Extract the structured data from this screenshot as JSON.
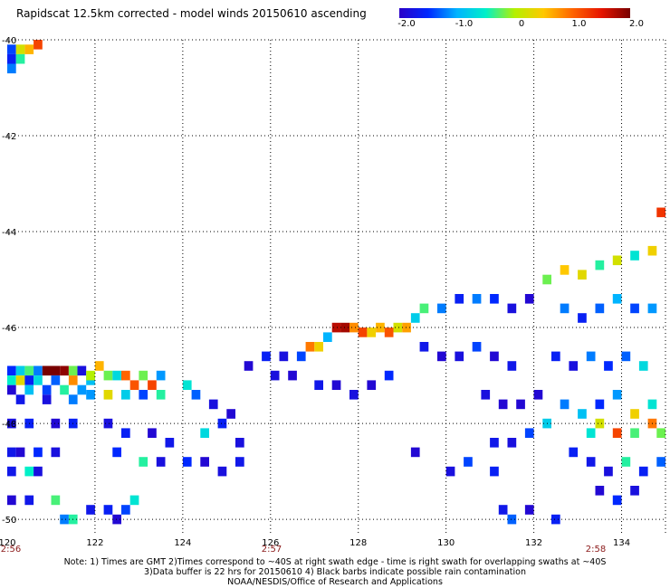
{
  "title": "Rapidscat 12.5km corrected - model winds 20150610 ascending",
  "colorbar": {
    "ticks": [
      "-2.0",
      "-1.0",
      "0",
      "1.0",
      "2.0"
    ],
    "range": [
      -2.0,
      2.0
    ],
    "colors": [
      "#2a00c8",
      "#0028ff",
      "#00b4ff",
      "#00f0c8",
      "#b4f000",
      "#ffc800",
      "#ff6400",
      "#e61400",
      "#780000"
    ]
  },
  "time_labels": [
    "2:56",
    "2:57",
    "2:58"
  ],
  "notes": [
    "Note: 1) Times are GMT 2)Times correspond to ~40S at right swath edge - time is right swath for overlapping swaths at ~40S",
    "3)Data buffer is 22 hrs for 20150610 4) Black barbs indicate possible rain contamination",
    "NOAA/NESDIS/Office of Research and Applications"
  ],
  "chart_data": {
    "type": "heatmap",
    "title": "Rapidscat 12.5km corrected - model winds 20150610 ascending",
    "xlabel": "",
    "ylabel": "",
    "xlim": [
      120,
      135
    ],
    "ylim": [
      -50.3,
      -40
    ],
    "x_ticks": [
      "120",
      "122",
      "124",
      "126",
      "128",
      "130",
      "132",
      "134"
    ],
    "y_ticks": [
      "-40",
      "-42",
      "-44",
      "-46",
      "-48",
      "-50"
    ],
    "grid": true,
    "value_range": [
      -2.0,
      2.0
    ],
    "cell_size_deg": 0.2,
    "cells": [
      [
        120.1,
        -40.2,
        -1.4
      ],
      [
        120.3,
        -40.2,
        0.2
      ],
      [
        120.5,
        -40.2,
        0.6
      ],
      [
        120.7,
        -40.1,
        1.2
      ],
      [
        120.1,
        -40.4,
        -1.6
      ],
      [
        120.3,
        -40.4,
        -0.4
      ],
      [
        120.1,
        -40.6,
        -1.2
      ],
      [
        120.1,
        -46.9,
        -1.5
      ],
      [
        120.3,
        -46.9,
        -0.8
      ],
      [
        120.5,
        -46.9,
        -0.3
      ],
      [
        120.7,
        -46.9,
        -1.2
      ],
      [
        120.9,
        -46.9,
        2.0
      ],
      [
        121.1,
        -46.9,
        2.0
      ],
      [
        121.3,
        -46.9,
        1.9
      ],
      [
        121.5,
        -46.9,
        -0.2
      ],
      [
        121.7,
        -46.9,
        -1.8
      ],
      [
        120.1,
        -47.1,
        -0.5
      ],
      [
        120.3,
        -47.1,
        0.3
      ],
      [
        120.5,
        -47.1,
        -1.6
      ],
      [
        120.7,
        -47.1,
        -0.7
      ],
      [
        121.1,
        -47.1,
        -1.3
      ],
      [
        121.5,
        -47.1,
        0.8
      ],
      [
        121.9,
        -47.1,
        -0.9
      ],
      [
        120.1,
        -47.3,
        -1.9
      ],
      [
        120.5,
        -47.3,
        -0.9
      ],
      [
        120.9,
        -47.3,
        -1.4
      ],
      [
        121.3,
        -47.3,
        -0.4
      ],
      [
        121.7,
        -47.3,
        -1.1
      ],
      [
        120.3,
        -47.5,
        -1.7
      ],
      [
        120.9,
        -47.5,
        -1.8
      ],
      [
        121.5,
        -47.5,
        -1.2
      ],
      [
        120.1,
        -48.0,
        -1.8
      ],
      [
        120.5,
        -48.0,
        -1.6
      ],
      [
        121.1,
        -48.0,
        -1.9
      ],
      [
        121.5,
        -48.0,
        -1.6
      ],
      [
        120.1,
        -48.6,
        -1.7
      ],
      [
        120.3,
        -48.6,
        -1.9
      ],
      [
        120.7,
        -48.6,
        -1.5
      ],
      [
        121.1,
        -48.6,
        -1.8
      ],
      [
        120.1,
        -49.0,
        -1.7
      ],
      [
        120.5,
        -49.0,
        -0.5
      ],
      [
        120.7,
        -49.0,
        -1.8
      ],
      [
        120.1,
        -49.6,
        -1.9
      ],
      [
        120.5,
        -49.6,
        -1.7
      ],
      [
        121.1,
        -49.6,
        -0.3
      ],
      [
        121.3,
        -50.0,
        -1.2
      ],
      [
        121.5,
        -50.0,
        -0.4
      ],
      [
        121.9,
        -49.8,
        -1.7
      ],
      [
        122.3,
        -49.8,
        -1.6
      ],
      [
        122.5,
        -50.0,
        -1.9
      ],
      [
        122.7,
        -49.8,
        -1.4
      ],
      [
        122.9,
        -49.6,
        -0.6
      ],
      [
        121.9,
        -47.0,
        0.0
      ],
      [
        122.1,
        -46.8,
        0.6
      ],
      [
        122.3,
        -47.0,
        -0.2
      ],
      [
        122.5,
        -47.0,
        -0.7
      ],
      [
        122.7,
        -47.0,
        1.0
      ],
      [
        122.9,
        -47.2,
        1.1
      ],
      [
        123.1,
        -47.0,
        -0.2
      ],
      [
        123.3,
        -47.2,
        1.2
      ],
      [
        123.5,
        -47.0,
        -1.1
      ],
      [
        121.9,
        -47.4,
        -1.1
      ],
      [
        122.3,
        -47.4,
        0.3
      ],
      [
        122.7,
        -47.4,
        -0.8
      ],
      [
        123.1,
        -47.4,
        -1.4
      ],
      [
        123.5,
        -47.4,
        -0.4
      ],
      [
        122.3,
        -48.0,
        -1.8
      ],
      [
        122.7,
        -48.2,
        -1.6
      ],
      [
        123.3,
        -48.2,
        -1.9
      ],
      [
        123.7,
        -48.4,
        -1.7
      ],
      [
        122.5,
        -48.6,
        -1.5
      ],
      [
        123.1,
        -48.8,
        -0.4
      ],
      [
        123.5,
        -48.8,
        -1.8
      ],
      [
        124.1,
        -47.2,
        -0.6
      ],
      [
        124.3,
        -47.4,
        -1.3
      ],
      [
        124.7,
        -47.6,
        -1.8
      ],
      [
        125.1,
        -47.8,
        -1.9
      ],
      [
        124.5,
        -48.2,
        -0.7
      ],
      [
        124.9,
        -48.0,
        -1.6
      ],
      [
        125.3,
        -48.4,
        -1.8
      ],
      [
        124.1,
        -48.8,
        -1.5
      ],
      [
        124.5,
        -48.8,
        -1.9
      ],
      [
        124.9,
        -49.0,
        -1.8
      ],
      [
        125.3,
        -48.8,
        -1.7
      ],
      [
        125.5,
        -46.8,
        -1.9
      ],
      [
        125.9,
        -46.6,
        -1.6
      ],
      [
        126.3,
        -46.6,
        -1.8
      ],
      [
        126.7,
        -46.6,
        -1.4
      ],
      [
        126.9,
        -46.4,
        0.9
      ],
      [
        127.1,
        -46.4,
        0.4
      ],
      [
        127.3,
        -46.2,
        -1.0
      ],
      [
        127.5,
        -46.0,
        1.7
      ],
      [
        127.7,
        -46.0,
        1.8
      ],
      [
        127.9,
        -46.0,
        0.8
      ],
      [
        128.1,
        -46.1,
        1.2
      ],
      [
        128.3,
        -46.1,
        0.4
      ],
      [
        128.5,
        -46.0,
        0.6
      ],
      [
        128.7,
        -46.1,
        1.1
      ],
      [
        128.9,
        -46.0,
        0.2
      ],
      [
        129.1,
        -46.0,
        0.7
      ],
      [
        126.1,
        -47.0,
        -1.8
      ],
      [
        126.5,
        -47.0,
        -1.9
      ],
      [
        127.1,
        -47.2,
        -1.7
      ],
      [
        127.5,
        -47.2,
        -1.9
      ],
      [
        127.9,
        -47.4,
        -1.8
      ],
      [
        128.3,
        -47.2,
        -1.9
      ],
      [
        128.7,
        -47.0,
        -1.5
      ],
      [
        129.3,
        -45.8,
        -0.8
      ],
      [
        129.5,
        -45.6,
        -0.3
      ],
      [
        129.9,
        -45.6,
        -1.2
      ],
      [
        130.3,
        -45.4,
        -1.6
      ],
      [
        130.7,
        -45.4,
        -1.2
      ],
      [
        131.1,
        -45.4,
        -1.5
      ],
      [
        131.5,
        -45.6,
        -1.8
      ],
      [
        131.9,
        -45.4,
        -1.9
      ],
      [
        129.5,
        -46.4,
        -1.7
      ],
      [
        129.9,
        -46.6,
        -1.9
      ],
      [
        130.3,
        -46.6,
        -1.8
      ],
      [
        130.7,
        -46.4,
        -1.4
      ],
      [
        131.1,
        -46.6,
        -1.9
      ],
      [
        131.5,
        -46.8,
        -1.7
      ],
      [
        130.9,
        -47.4,
        -1.8
      ],
      [
        131.3,
        -47.6,
        -1.9
      ],
      [
        131.7,
        -47.6,
        -1.9
      ],
      [
        132.1,
        -47.4,
        -1.9
      ],
      [
        131.1,
        -48.4,
        -1.7
      ],
      [
        131.5,
        -48.4,
        -1.8
      ],
      [
        131.9,
        -48.2,
        -1.4
      ],
      [
        132.3,
        -48.0,
        -0.8
      ],
      [
        132.3,
        -45.0,
        -0.2
      ],
      [
        132.7,
        -44.8,
        0.5
      ],
      [
        133.1,
        -44.9,
        0.3
      ],
      [
        133.5,
        -44.7,
        -0.4
      ],
      [
        133.9,
        -44.6,
        0.2
      ],
      [
        134.3,
        -44.5,
        -0.6
      ],
      [
        134.7,
        -44.4,
        0.4
      ],
      [
        134.9,
        -43.6,
        1.3
      ],
      [
        132.7,
        -45.6,
        -1.2
      ],
      [
        133.1,
        -45.8,
        -1.6
      ],
      [
        133.5,
        -45.6,
        -1.3
      ],
      [
        133.9,
        -45.4,
        -1.0
      ],
      [
        134.3,
        -45.6,
        -1.4
      ],
      [
        134.7,
        -45.6,
        -1.1
      ],
      [
        132.5,
        -46.6,
        -1.6
      ],
      [
        132.9,
        -46.8,
        -1.8
      ],
      [
        133.3,
        -46.6,
        -1.2
      ],
      [
        133.7,
        -46.8,
        -1.5
      ],
      [
        134.1,
        -46.6,
        -1.3
      ],
      [
        134.5,
        -46.8,
        -0.7
      ],
      [
        132.7,
        -47.6,
        -1.2
      ],
      [
        133.1,
        -47.8,
        -0.9
      ],
      [
        133.5,
        -47.6,
        -1.5
      ],
      [
        133.9,
        -47.4,
        -1.1
      ],
      [
        134.3,
        -47.8,
        0.4
      ],
      [
        134.7,
        -47.6,
        -0.6
      ],
      [
        133.3,
        -48.2,
        -0.6
      ],
      [
        133.5,
        -48.0,
        0.2
      ],
      [
        133.9,
        -48.2,
        1.2
      ],
      [
        134.3,
        -48.2,
        -0.3
      ],
      [
        134.7,
        -48.0,
        0.9
      ],
      [
        134.9,
        -48.2,
        -0.2
      ],
      [
        132.9,
        -48.6,
        -1.6
      ],
      [
        133.3,
        -48.8,
        -1.7
      ],
      [
        133.7,
        -49.0,
        -1.8
      ],
      [
        134.1,
        -48.8,
        -0.4
      ],
      [
        134.5,
        -49.0,
        -1.6
      ],
      [
        134.9,
        -48.8,
        -1.3
      ],
      [
        133.5,
        -49.4,
        -1.9
      ],
      [
        133.9,
        -49.6,
        -1.5
      ],
      [
        134.3,
        -49.4,
        -1.8
      ],
      [
        131.3,
        -49.8,
        -1.7
      ],
      [
        131.5,
        -50.0,
        -1.3
      ],
      [
        131.9,
        -49.8,
        -1.9
      ],
      [
        132.5,
        -50.0,
        -1.6
      ],
      [
        129.3,
        -48.6,
        -1.9
      ],
      [
        130.1,
        -49.0,
        -1.8
      ],
      [
        130.5,
        -48.8,
        -1.4
      ],
      [
        131.1,
        -49.0,
        -1.6
      ]
    ]
  }
}
